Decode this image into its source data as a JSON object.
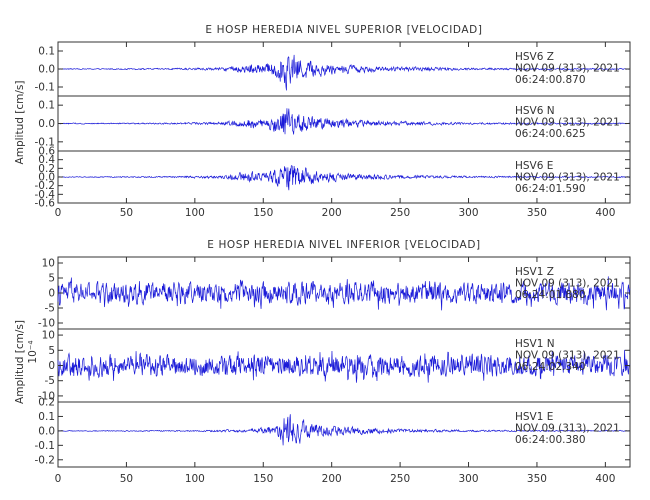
{
  "chart_data": [
    {
      "type": "line",
      "title": "E HOSP HEREDIA NIVEL SUPERIOR [VELOCIDAD]",
      "ylabel": "Amplitud [cm/s]",
      "xlim": [
        0,
        418
      ],
      "x_ticks": [
        "0",
        "50",
        "100",
        "150",
        "200",
        "250",
        "300",
        "350",
        "400"
      ],
      "series_color": "#1a1ad8",
      "series": [
        {
          "label_lines": [
            "HSV6   Z",
            "NOV 09 (313), 2021",
            "06:24:00.870"
          ],
          "ylim": [
            -0.15,
            0.15
          ],
          "y_ticks": [
            "0.1",
            "0.0",
            "-0.1"
          ],
          "y_tick_values": [
            0.1,
            0.0,
            -0.1
          ],
          "noise_amp": 0.003,
          "envelope": [
            [
              0,
              0.003
            ],
            [
              80,
              0.005
            ],
            [
              120,
              0.01
            ],
            [
              140,
              0.04
            ],
            [
              150,
              0.035
            ],
            [
              160,
              0.07
            ],
            [
              166,
              0.14
            ],
            [
              172,
              0.1
            ],
            [
              185,
              0.06
            ],
            [
              200,
              0.04
            ],
            [
              230,
              0.02
            ],
            [
              300,
              0.008
            ],
            [
              418,
              0.004
            ]
          ]
        },
        {
          "label_lines": [
            "HSV6   N",
            "NOV 09 (313), 2021",
            "06:24:00.625"
          ],
          "ylim": [
            -0.15,
            0.15
          ],
          "y_ticks": [
            "0.1",
            "0.0",
            "-0.1"
          ],
          "y_tick_values": [
            0.1,
            0.0,
            -0.1
          ],
          "noise_amp": 0.003,
          "envelope": [
            [
              0,
              0.003
            ],
            [
              80,
              0.005
            ],
            [
              120,
              0.01
            ],
            [
              140,
              0.035
            ],
            [
              150,
              0.03
            ],
            [
              160,
              0.06
            ],
            [
              166,
              0.12
            ],
            [
              172,
              0.09
            ],
            [
              185,
              0.05
            ],
            [
              200,
              0.035
            ],
            [
              230,
              0.018
            ],
            [
              300,
              0.007
            ],
            [
              418,
              0.004
            ]
          ]
        },
        {
          "label_lines": [
            "HSV6   E",
            "NOV 09 (313), 2021",
            "06:24:01.590"
          ],
          "ylim": [
            -0.6,
            0.6
          ],
          "y_ticks": [
            "0.6",
            "0.4",
            "0.2",
            "0.0",
            "-0.2",
            "-0.4",
            "-0.6"
          ],
          "y_tick_values": [
            0.6,
            0.4,
            0.2,
            0.0,
            -0.2,
            -0.4,
            -0.6
          ],
          "noise_amp": 0.01,
          "envelope": [
            [
              0,
              0.01
            ],
            [
              80,
              0.02
            ],
            [
              120,
              0.05
            ],
            [
              140,
              0.18
            ],
            [
              150,
              0.12
            ],
            [
              160,
              0.25
            ],
            [
              168,
              0.5
            ],
            [
              175,
              0.35
            ],
            [
              190,
              0.18
            ],
            [
              210,
              0.1
            ],
            [
              240,
              0.06
            ],
            [
              300,
              0.03
            ],
            [
              418,
              0.015
            ]
          ]
        }
      ]
    },
    {
      "type": "line",
      "title": "E HOSP HEREDIA NIVEL INFERIOR [VELOCIDAD]",
      "ylabel": "Amplitud [cm/s]",
      "scale_note": "10⁻⁴",
      "xlim": [
        0,
        418
      ],
      "x_ticks": [
        "0",
        "50",
        "100",
        "150",
        "200",
        "250",
        "300",
        "350",
        "400"
      ],
      "series_color": "#1a1ad8",
      "series": [
        {
          "label_lines": [
            "HSV1   Z",
            "NOV 09 (313), 2021",
            "06:24:01.880"
          ],
          "ylim": [
            -12,
            12
          ],
          "y_ticks": [
            "10",
            "5",
            "0",
            "-5",
            "-10"
          ],
          "y_tick_values": [
            10,
            5,
            0,
            -5,
            -10
          ],
          "noise_amp": 4.5,
          "envelope": [
            [
              0,
              0.3
            ],
            [
              418,
              0.3
            ]
          ]
        },
        {
          "label_lines": [
            "HSV1   N",
            "NOV 09 (313), 2021",
            "06:24:02.340"
          ],
          "ylim": [
            -12,
            12
          ],
          "y_ticks": [
            "10",
            "5",
            "0",
            "-5",
            "-10"
          ],
          "y_tick_values": [
            10,
            5,
            0,
            -5,
            -10
          ],
          "noise_amp": 4.5,
          "envelope": [
            [
              0,
              0.3
            ],
            [
              418,
              0.3
            ]
          ]
        },
        {
          "label_lines": [
            "HSV1   E",
            "NOV 09 (313), 2021",
            "06:24:00.380"
          ],
          "ylim": [
            -0.25,
            0.2
          ],
          "y_ticks": [
            "0.2",
            "0.1",
            "0.0",
            "-0.1",
            "-0.2"
          ],
          "y_tick_values": [
            0.2,
            0.1,
            0.0,
            -0.1,
            -0.2
          ],
          "noise_amp": 0.003,
          "envelope": [
            [
              0,
              0.003
            ],
            [
              100,
              0.005
            ],
            [
              140,
              0.015
            ],
            [
              160,
              0.05
            ],
            [
              168,
              0.2
            ],
            [
              172,
              0.12
            ],
            [
              185,
              0.07
            ],
            [
              200,
              0.045
            ],
            [
              240,
              0.02
            ],
            [
              300,
              0.008
            ],
            [
              418,
              0.004
            ]
          ]
        }
      ]
    }
  ]
}
